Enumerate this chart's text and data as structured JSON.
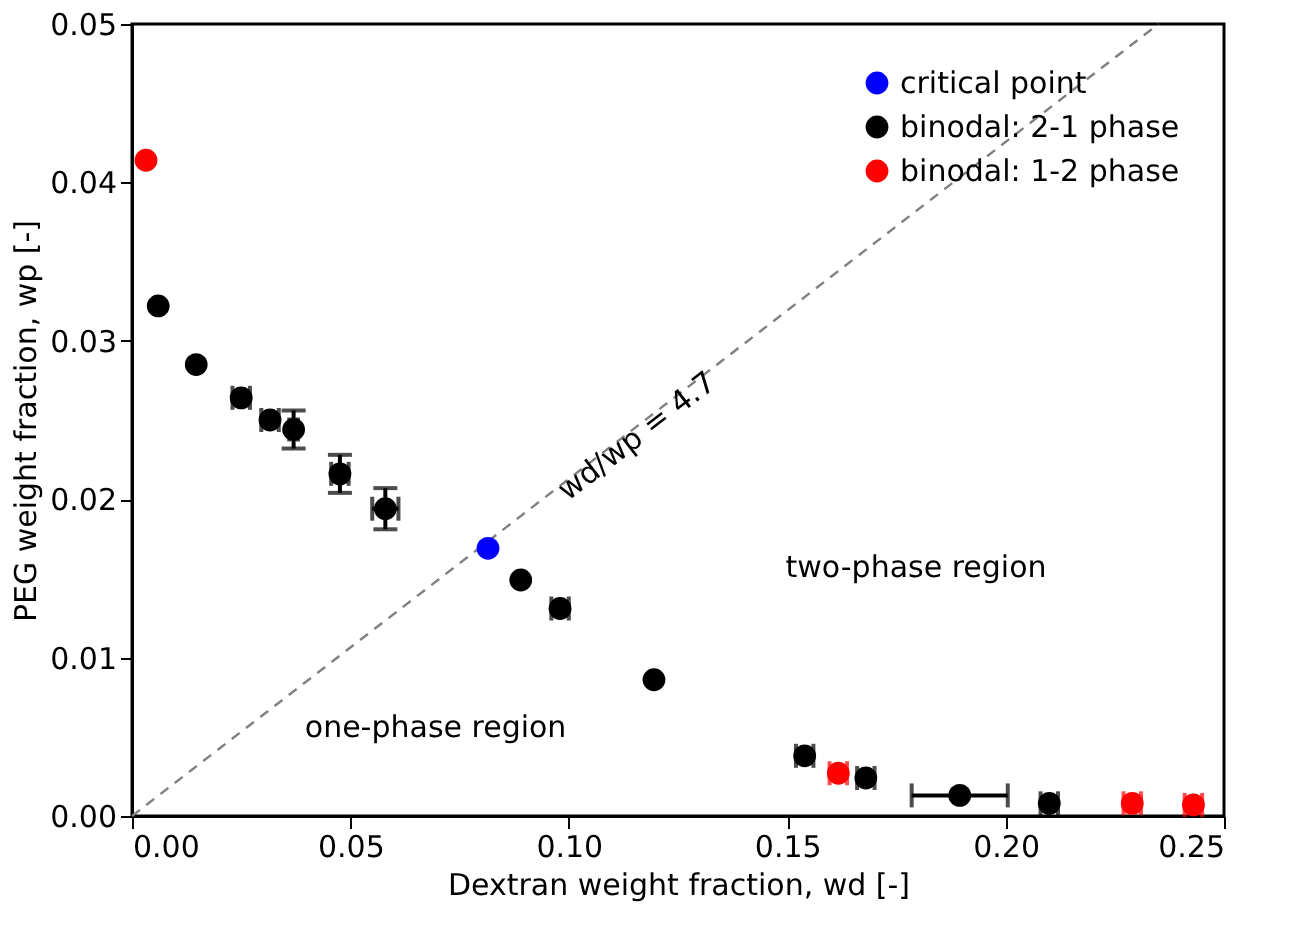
{
  "chart_data": {
    "type": "scatter",
    "xlabel": "Dextran weight fraction, wd [-]",
    "ylabel": "PEG weight fraction, wp [-]",
    "xlim": [
      0,
      0.25
    ],
    "xticks": [
      {
        "value": 0,
        "label": "0.00"
      },
      0.05,
      {
        "value": 0.1,
        "label": "0.10"
      },
      0.15,
      {
        "value": 0.2,
        "label": "0.20"
      },
      0.25
    ],
    "ylim": [
      0,
      0.05
    ],
    "yticks": [
      {
        "value": 0,
        "label": "0.00"
      },
      {
        "value": 0.01,
        "label": "0.01"
      },
      {
        "value": 0.02,
        "label": "0.02"
      },
      {
        "value": 0.03,
        "label": "0.03"
      },
      {
        "value": 0.04,
        "label": "0.04"
      },
      {
        "value": 0.05,
        "label": "0.05"
      }
    ],
    "grid": false,
    "legend": "top right",
    "marker": "circle",
    "series": [
      {
        "name": "critical point",
        "color": "#0000ff",
        "x": [
          0.0815
        ],
        "values": [
          0.0169
        ]
      },
      {
        "name": "binodal: 2-1 phase",
        "color": "#000000",
        "x": [
          0.006,
          0.0147,
          0.025,
          0.0316,
          0.037,
          0.0476,
          0.058,
          0.089,
          0.098,
          0.1195,
          0.154,
          0.168,
          0.1895,
          0.21
        ],
        "values": [
          0.0322,
          0.0285,
          0.0264,
          0.025,
          0.0244,
          0.0216,
          0.0194,
          0.0149,
          0.0131,
          0.0086,
          0.0038,
          0.0024,
          0.0013,
          0.0008
        ],
        "errors": [
          null,
          null,
          null,
          null,
          0.0012,
          0.0012,
          0.0013,
          null,
          null,
          null,
          null,
          null,
          null,
          null
        ],
        "xerrors": [
          null,
          null,
          0.002,
          0.002,
          0.001,
          0.002,
          0.003,
          null,
          0.002,
          null,
          0.002,
          0.002,
          0.011,
          0.002
        ]
      },
      {
        "name": "binodal: 1-2 phase",
        "color": "#ff0000",
        "x": [
          0.0032,
          0.1617,
          0.229,
          0.243
        ],
        "values": [
          0.0414,
          0.0027,
          0.0008,
          0.0007
        ],
        "xerrors": [
          null,
          0.002,
          0.002,
          0.002
        ]
      },
      {
        "type": "line",
        "color": "#808080",
        "line_style": "dashed",
        "marker": "none",
        "x": [
          0,
          0.235
        ],
        "values": [
          0,
          0.05
        ]
      }
    ],
    "annotations": [
      "wd/wp = 4.7",
      "two-phase region",
      "one-phase region"
    ]
  }
}
